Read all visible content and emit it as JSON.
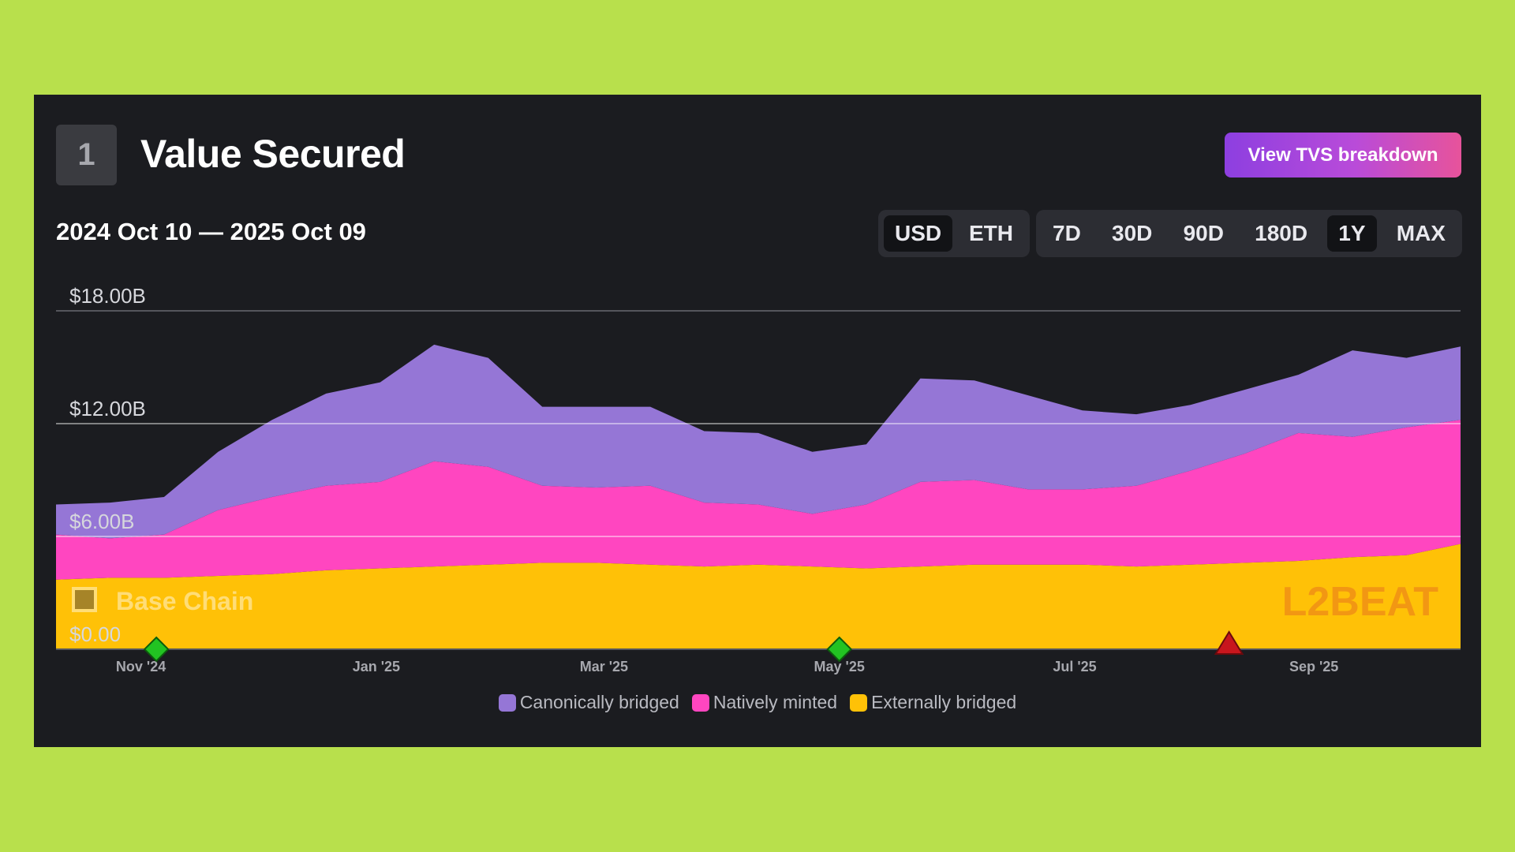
{
  "card": {
    "index": "1",
    "title": "Value Secured",
    "breakdown_label": "View TVS breakdown",
    "date_range": "2024 Oct 10 — 2025 Oct 09"
  },
  "units": [
    {
      "label": "USD",
      "active": true
    },
    {
      "label": "ETH",
      "active": false
    }
  ],
  "ranges": [
    {
      "label": "7D",
      "active": false
    },
    {
      "label": "30D",
      "active": false
    },
    {
      "label": "90D",
      "active": false
    },
    {
      "label": "180D",
      "active": false
    },
    {
      "label": "1Y",
      "active": true
    },
    {
      "label": "MAX",
      "active": false
    }
  ],
  "watermark": {
    "chain_label": "Base Chain",
    "logo_text": "L2BEAT"
  },
  "colors": {
    "canonical": "#9576d6",
    "native": "#ff46c0",
    "external": "#ffc107",
    "milestone": "#22c322",
    "incident": "#c8161d"
  },
  "chart_data": {
    "type": "area",
    "stacked": true,
    "x_start": "2024-10-10",
    "x_end": "2025-10-09",
    "y_tick_labels": [
      "$0.00",
      "$6.00B",
      "$12.00B",
      "$18.00B"
    ],
    "y_tick_values": [
      0,
      6,
      12,
      18
    ],
    "ylim": [
      0,
      18
    ],
    "x_tick_labels": [
      "Nov '24",
      "Jan '25",
      "Mar '25",
      "May '25",
      "Jul '25",
      "Sep '25"
    ],
    "x_tick_dates": [
      "2024-11-01",
      "2025-01-01",
      "2025-03-01",
      "2025-05-01",
      "2025-07-01",
      "2025-09-01"
    ],
    "grid": true,
    "legend_position": "bottom",
    "dates": [
      "2024-10-10",
      "2024-10-24",
      "2024-11-07",
      "2024-11-21",
      "2024-12-05",
      "2024-12-19",
      "2025-01-02",
      "2025-01-16",
      "2025-01-30",
      "2025-02-13",
      "2025-02-27",
      "2025-03-13",
      "2025-03-27",
      "2025-04-10",
      "2025-04-24",
      "2025-05-08",
      "2025-05-22",
      "2025-06-05",
      "2025-06-19",
      "2025-07-03",
      "2025-07-17",
      "2025-07-31",
      "2025-08-14",
      "2025-08-28",
      "2025-09-11",
      "2025-09-25",
      "2025-10-09"
    ],
    "series": [
      {
        "name": "Externally bridged",
        "color_key": "external",
        "values": [
          3.7,
          3.8,
          3.8,
          3.9,
          4.0,
          4.2,
          4.3,
          4.4,
          4.5,
          4.6,
          4.6,
          4.5,
          4.4,
          4.5,
          4.4,
          4.3,
          4.4,
          4.5,
          4.5,
          4.5,
          4.4,
          4.5,
          4.6,
          4.7,
          4.9,
          5.0,
          5.6
        ]
      },
      {
        "name": "Natively minted",
        "color_key": "native",
        "values": [
          2.4,
          2.1,
          2.3,
          3.5,
          4.1,
          4.5,
          4.6,
          5.6,
          5.2,
          4.1,
          4.0,
          4.2,
          3.4,
          3.2,
          2.8,
          3.4,
          4.5,
          4.5,
          4.0,
          4.0,
          4.3,
          5.0,
          5.8,
          6.8,
          6.4,
          6.8,
          6.6
        ]
      },
      {
        "name": "Canonically bridged",
        "color_key": "canonical",
        "values": [
          1.6,
          1.9,
          2.0,
          3.1,
          4.1,
          4.9,
          5.3,
          6.2,
          5.8,
          4.2,
          4.3,
          4.2,
          3.8,
          3.8,
          3.3,
          3.2,
          5.5,
          5.3,
          5.0,
          4.2,
          3.8,
          3.5,
          3.4,
          3.1,
          4.6,
          3.7,
          3.9
        ]
      }
    ],
    "events": [
      {
        "date": "2024-11-05",
        "kind": "milestone",
        "color_key": "milestone"
      },
      {
        "date": "2025-05-01",
        "kind": "milestone",
        "color_key": "milestone"
      },
      {
        "date": "2025-08-10",
        "kind": "incident",
        "color_key": "incident"
      }
    ]
  }
}
